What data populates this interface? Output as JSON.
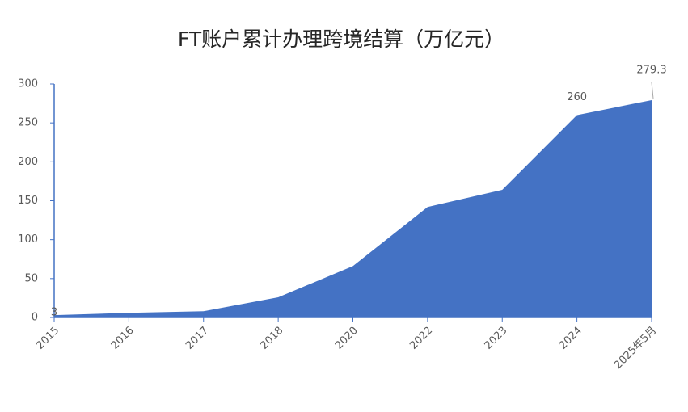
{
  "chart_data": {
    "type": "area",
    "title": "FT账户累计办理跨境结算（万亿元）",
    "categories": [
      "2015",
      "2016",
      "2017",
      "2018",
      "2020",
      "2022",
      "2023",
      "2024",
      "2025年5月"
    ],
    "values": [
      3,
      6,
      8,
      26,
      66,
      142,
      164,
      260,
      279.3
    ],
    "value_labels": [
      "3",
      null,
      null,
      null,
      null,
      null,
      null,
      "260",
      "279.3"
    ],
    "color": "#4472c4",
    "ylim": [
      0,
      300
    ],
    "yticks": [
      0,
      50,
      100,
      150,
      200,
      250,
      300
    ]
  }
}
